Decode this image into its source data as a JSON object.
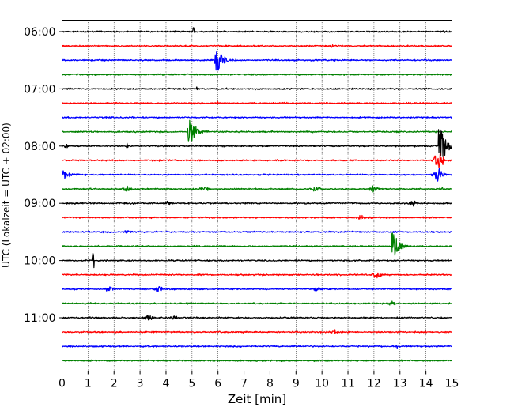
{
  "chart_data": {
    "type": "line",
    "plot_style": "helicorder",
    "xlabel": "Zeit  [min]",
    "ylabel": "UTC (Lokalzeit = UTC + 02:00)",
    "xlim": [
      0,
      15
    ],
    "x_ticks": [
      "0",
      "1",
      "2",
      "3",
      "4",
      "5",
      "6",
      "7",
      "8",
      "9",
      "10",
      "11",
      "12",
      "13",
      "14",
      "15"
    ],
    "y_ticks": [
      "06:00",
      "07:00",
      "08:00",
      "09:00",
      "10:00",
      "11:00"
    ],
    "trace_interval_minutes": 15,
    "first_trace": "06:00",
    "grid": "vertical dotted lines at each minute",
    "color_cycle": [
      "#000000",
      "#ff0000",
      "#0000ff",
      "#008000"
    ],
    "traces": [
      {
        "start": "06:00",
        "events": [
          {
            "minute": 5.05,
            "amplitude": 0.45,
            "type": "spike"
          }
        ]
      },
      {
        "start": "06:15",
        "events": [
          {
            "minute": 10.4,
            "amplitude": 0.25,
            "type": "spike"
          }
        ]
      },
      {
        "start": "06:30",
        "events": [
          {
            "minute": 5.9,
            "amplitude": 0.95,
            "type": "quake"
          }
        ]
      },
      {
        "start": "06:45",
        "events": []
      },
      {
        "start": "07:00",
        "events": [
          {
            "minute": 5.2,
            "amplitude": 0.2,
            "type": "spike"
          }
        ]
      },
      {
        "start": "07:15",
        "events": [
          {
            "minute": 6.0,
            "amplitude": 0.2,
            "type": "spike"
          }
        ]
      },
      {
        "start": "07:30",
        "events": []
      },
      {
        "start": "07:45",
        "events": [
          {
            "minute": 4.85,
            "amplitude": 0.85,
            "type": "quake"
          }
        ]
      },
      {
        "start": "08:00",
        "events": [
          {
            "minute": 0.1,
            "amplitude": 0.25,
            "type": "burst"
          },
          {
            "minute": 2.5,
            "amplitude": 0.2,
            "type": "spike"
          },
          {
            "minute": 14.5,
            "amplitude": 1.4,
            "type": "quake"
          }
        ]
      },
      {
        "start": "08:15",
        "events": [
          {
            "minute": 14.5,
            "amplitude": 1.0,
            "type": "burst"
          }
        ]
      },
      {
        "start": "08:30",
        "events": [
          {
            "minute": 0.0,
            "amplitude": 0.35,
            "type": "quake"
          },
          {
            "minute": 14.5,
            "amplitude": 0.9,
            "type": "burst"
          }
        ]
      },
      {
        "start": "08:45",
        "events": [
          {
            "minute": 2.5,
            "amplitude": 0.25,
            "type": "burst"
          },
          {
            "minute": 5.5,
            "amplitude": 0.25,
            "type": "burst"
          },
          {
            "minute": 9.8,
            "amplitude": 0.3,
            "type": "burst"
          },
          {
            "minute": 12.0,
            "amplitude": 0.3,
            "type": "burst"
          },
          {
            "minute": 14.6,
            "amplitude": 0.35,
            "type": "spike"
          }
        ]
      },
      {
        "start": "09:00",
        "events": [
          {
            "minute": 4.1,
            "amplitude": 0.25,
            "type": "burst"
          },
          {
            "minute": 13.5,
            "amplitude": 0.3,
            "type": "burst"
          }
        ]
      },
      {
        "start": "09:15",
        "events": [
          {
            "minute": 11.5,
            "amplitude": 0.25,
            "type": "burst"
          }
        ]
      },
      {
        "start": "09:30",
        "events": [
          {
            "minute": 2.5,
            "amplitude": 0.15,
            "type": "burst"
          }
        ]
      },
      {
        "start": "09:45",
        "events": [
          {
            "minute": 12.7,
            "amplitude": 0.9,
            "type": "quake"
          }
        ]
      },
      {
        "start": "10:00",
        "events": [
          {
            "minute": 1.2,
            "amplitude": 0.9,
            "type": "spike"
          }
        ]
      },
      {
        "start": "10:15",
        "events": [
          {
            "minute": 12.1,
            "amplitude": 0.45,
            "type": "burst"
          }
        ]
      },
      {
        "start": "10:30",
        "events": [
          {
            "minute": 1.8,
            "amplitude": 0.3,
            "type": "burst"
          },
          {
            "minute": 3.7,
            "amplitude": 0.35,
            "type": "burst"
          },
          {
            "minute": 9.8,
            "amplitude": 0.2,
            "type": "burst"
          }
        ]
      },
      {
        "start": "10:45",
        "events": [
          {
            "minute": 12.7,
            "amplitude": 0.2,
            "type": "burst"
          }
        ]
      },
      {
        "start": "11:00",
        "events": [
          {
            "minute": 3.3,
            "amplitude": 0.25,
            "type": "burst"
          },
          {
            "minute": 4.3,
            "amplitude": 0.2,
            "type": "burst"
          }
        ]
      },
      {
        "start": "11:15",
        "events": [
          {
            "minute": 10.5,
            "amplitude": 0.2,
            "type": "burst"
          }
        ]
      },
      {
        "start": "11:30",
        "events": [
          {
            "minute": 12.9,
            "amplitude": 0.2,
            "type": "spike"
          }
        ]
      },
      {
        "start": "11:45",
        "events": []
      }
    ]
  }
}
